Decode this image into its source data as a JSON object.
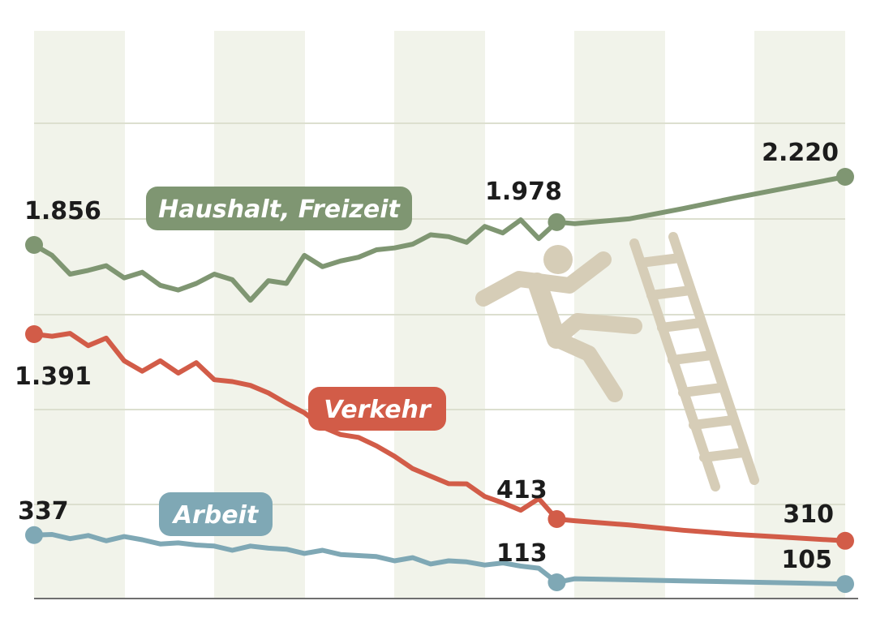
{
  "chart_data": {
    "type": "line",
    "title": "",
    "xlabel": "",
    "ylabel": "",
    "grid": true,
    "legend": "inline-labels",
    "x_range": [
      0,
      45
    ],
    "y_scale": "broken",
    "series": [
      {
        "name": "Haushalt, Freizeit",
        "color": "#7f9672",
        "x": [
          0,
          1,
          2,
          3,
          4,
          5,
          6,
          7,
          8,
          9,
          10,
          11,
          12,
          13,
          14,
          15,
          16,
          17,
          18,
          19,
          20,
          21,
          22,
          23,
          24,
          25,
          26,
          27,
          28,
          29,
          30,
          33,
          36,
          39,
          42,
          45
        ],
        "values": [
          1856,
          1800,
          1700,
          1720,
          1745,
          1680,
          1710,
          1640,
          1615,
          1650,
          1700,
          1670,
          1560,
          1665,
          1650,
          1800,
          1740,
          1770,
          1790,
          1830,
          1840,
          1860,
          1910,
          1900,
          1870,
          1955,
          1920,
          1990,
          1890,
          1978,
          1970,
          1995,
          2050,
          2110,
          2165,
          2220
        ],
        "labels": [
          {
            "index": 0,
            "text": "1.856"
          },
          {
            "index": 29,
            "text": "1.978"
          },
          {
            "index": 35,
            "text": "2.220"
          }
        ]
      },
      {
        "name": "Verkehr",
        "color": "#d25c48",
        "x": [
          0,
          1,
          2,
          3,
          4,
          5,
          6,
          7,
          8,
          9,
          10,
          11,
          12,
          13,
          14,
          15,
          16,
          17,
          18,
          19,
          20,
          21,
          22,
          23,
          24,
          25,
          26,
          27,
          28,
          29,
          30,
          33,
          36,
          39,
          42,
          45
        ],
        "values": [
          1391,
          1380,
          1395,
          1330,
          1370,
          1250,
          1195,
          1250,
          1185,
          1240,
          1150,
          1140,
          1120,
          1080,
          1025,
          975,
          900,
          860,
          845,
          800,
          745,
          680,
          640,
          600,
          580,
          520,
          490,
          455,
          510,
          413,
          405,
          385,
          360,
          340,
          325,
          310
        ],
        "labels": [
          {
            "index": 0,
            "text": "1.391"
          },
          {
            "index": 29,
            "text": "413"
          },
          {
            "index": 35,
            "text": "310"
          }
        ]
      },
      {
        "name": "Arbeit",
        "color": "#7fa8b5",
        "x": [
          0,
          1,
          2,
          3,
          4,
          5,
          6,
          7,
          8,
          9,
          10,
          11,
          12,
          13,
          14,
          15,
          16,
          17,
          18,
          19,
          20,
          21,
          22,
          23,
          24,
          25,
          26,
          27,
          28,
          29,
          30,
          33,
          36,
          39,
          42,
          45
        ],
        "values": [
          337,
          340,
          320,
          335,
          310,
          330,
          315,
          295,
          300,
          290,
          285,
          265,
          285,
          275,
          270,
          250,
          265,
          245,
          240,
          235,
          215,
          230,
          200,
          215,
          210,
          195,
          205,
          190,
          180,
          113,
          130,
          125,
          120,
          115,
          110,
          105
        ],
        "labels": [
          {
            "index": 0,
            "text": "337"
          },
          {
            "index": 29,
            "text": "113"
          },
          {
            "index": 35,
            "text": "105"
          }
        ]
      }
    ]
  }
}
